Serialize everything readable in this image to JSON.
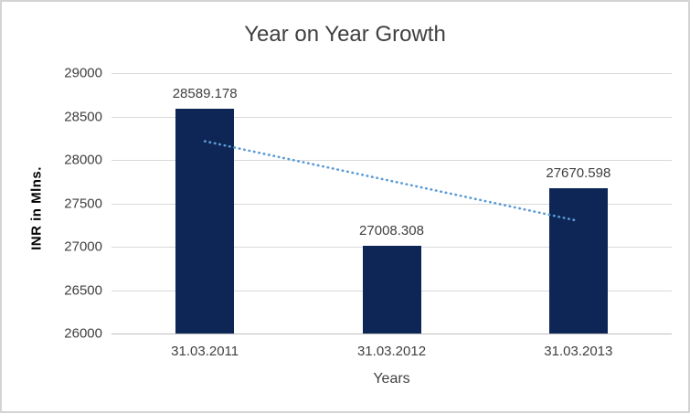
{
  "chart_data": {
    "type": "bar",
    "title": "Year on Year Growth",
    "categories": [
      "31.03.2011",
      "31.03.2012",
      "31.03.2013"
    ],
    "values": [
      28589.178,
      27008.308,
      27670.598
    ],
    "data_labels": [
      "28589.178",
      "27008.308",
      "27670.598"
    ],
    "xlabel": "Years",
    "ylabel": "INR in Mlns.",
    "ylim": [
      26000,
      29000
    ],
    "ytick_step": 500,
    "ytick_labels": [
      "29000",
      "28500",
      "28000",
      "27500",
      "27000",
      "26500",
      "26000"
    ],
    "grid": true,
    "legend": "none",
    "trendline": {
      "type": "linear",
      "style": "dotted",
      "start_value": 28215.3,
      "end_value": 27296.8,
      "color": "#5b9bd5"
    },
    "colors": {
      "bar": "#0e2656",
      "gridline": "#d9d9d9",
      "axis_line": "#bfbfbf",
      "label_text": "#404040",
      "axis_title_text": "#000000",
      "frame_border": "#d4d4d4",
      "background": "#ffffff"
    }
  }
}
